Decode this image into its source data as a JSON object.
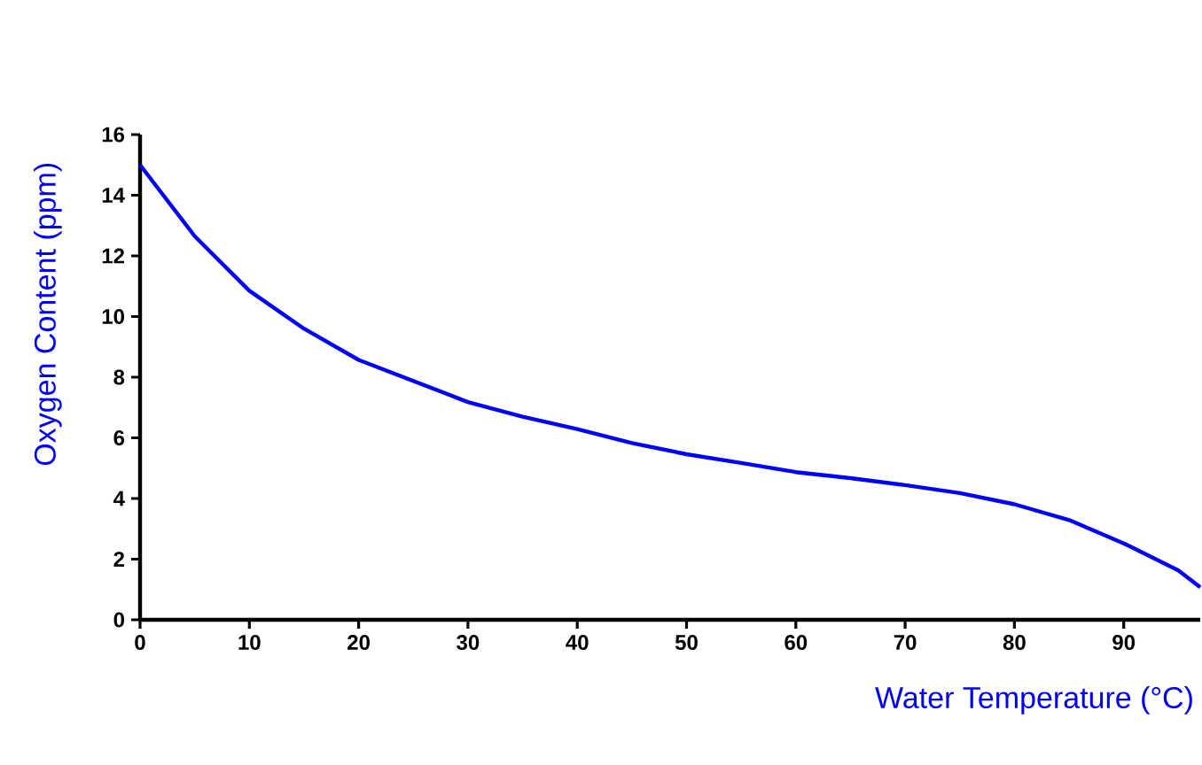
{
  "chart_data": {
    "type": "line",
    "xlabel": "Water Temperature (°C)",
    "ylabel": "Oxygen Content (ppm)",
    "x": [
      0,
      5,
      10,
      15,
      20,
      30,
      35,
      40,
      45,
      50,
      55,
      60,
      65,
      70,
      75,
      80,
      85,
      90,
      95,
      97
    ],
    "series": [
      {
        "color": "#0000ff",
        "values": [
          15.0,
          12.65,
          10.85,
          9.6,
          8.57,
          7.18,
          6.7,
          6.29,
          5.83,
          5.46,
          5.17,
          4.87,
          4.67,
          4.44,
          4.18,
          3.81,
          3.29,
          2.52,
          1.63,
          1.07
        ]
      }
    ],
    "xlim": [
      0,
      97
    ],
    "ylim": [
      0,
      16
    ],
    "xticks": [
      0,
      10,
      20,
      30,
      40,
      50,
      60,
      70,
      80,
      90
    ],
    "yticks": [
      0,
      2,
      4,
      6,
      8,
      10,
      12,
      14,
      16
    ],
    "grid": false,
    "marker": "none",
    "line_style": "solid"
  }
}
